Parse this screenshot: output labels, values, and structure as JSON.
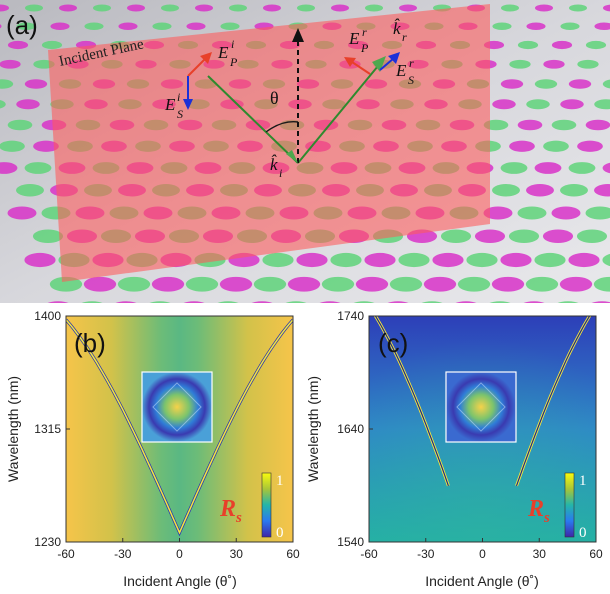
{
  "panel_a": {
    "label": "(a)",
    "plane_label": "Incident Plane",
    "theta": "θ",
    "vectors": {
      "E_P_i": {
        "base": "E",
        "sub": "P",
        "sup": "i"
      },
      "E_S_i": {
        "base": "E",
        "sub": "S",
        "sup": "i"
      },
      "k_i": {
        "base": "k̂",
        "sub": "i"
      },
      "E_P_r": {
        "base": "E",
        "sub": "P",
        "sup": "r"
      },
      "k_r": {
        "base": "k̂",
        "sub": "r"
      },
      "E_S_r": {
        "base": "E",
        "sub": "S",
        "sup": "r"
      }
    }
  },
  "chart_data": [
    {
      "type": "heatmap",
      "label": "(b)",
      "xlabel": "Incident Angle (θ˚)",
      "ylabel": "Wavelength (nm)",
      "xlim": [
        -60,
        60
      ],
      "ylim": [
        1230,
        1400
      ],
      "xticks": [
        "-60",
        "-30",
        "0",
        "30",
        "60"
      ],
      "yticks": [
        "1230",
        "1315",
        "1400"
      ],
      "colorbar": {
        "label_main": "R",
        "label_sub": "s",
        "min": "0",
        "max": "1"
      },
      "resonance_min_wavelength": 1237
    },
    {
      "type": "heatmap",
      "label": "(c)",
      "xlabel": "Incident Angle (θ˚)",
      "ylabel": "Wavelength (nm)",
      "xlim": [
        -60,
        60
      ],
      "ylim": [
        1540,
        1740
      ],
      "xticks": [
        "-60",
        "-30",
        "0",
        "30",
        "60"
      ],
      "yticks": [
        "1540",
        "1640",
        "1740"
      ],
      "colorbar": {
        "label_main": "R",
        "label_sub": "s",
        "min": "0",
        "max": "1"
      }
    }
  ],
  "colors": {
    "plane": "#ff5a5a",
    "arrow_red": "#e8402a",
    "arrow_blue": "#1c30d8",
    "ray_green": "#2e8a2e",
    "accent_rs": "#e8402a"
  }
}
